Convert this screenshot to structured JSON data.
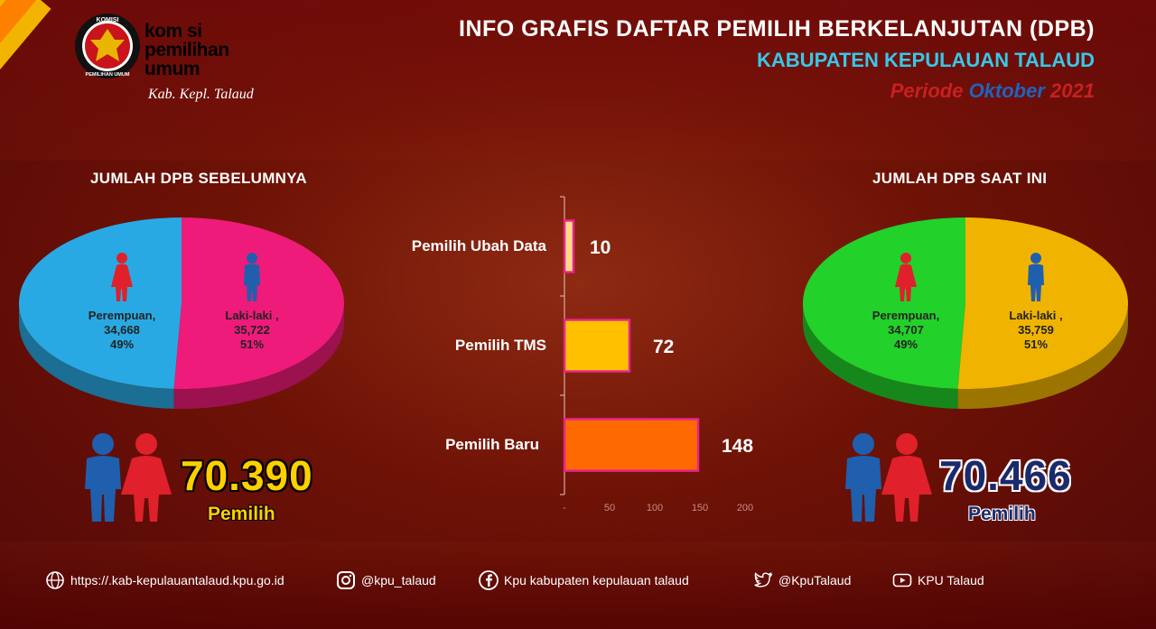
{
  "header": {
    "title": "INFO GRAFIS DAFTAR PEMILIH BERKELANJUTAN (DPB)",
    "subtitle": "KABUPATEN KEPULAUAN TALAUD",
    "periode_prefix": "Periode",
    "periode_month": "Oktober",
    "periode_year": "2021"
  },
  "logo": {
    "badge_top": "KOMISI",
    "badge_bottom": "PEMILIHAN UMUM",
    "line1": "kom si",
    "line2": "pemilihan",
    "line3": "umum",
    "subtitle": "Kab. Kepl. Talaud"
  },
  "colors": {
    "female_prev": "#29a9e3",
    "male_prev": "#ee1b7a",
    "female_curr": "#22d12a",
    "male_curr": "#f0b400",
    "female_icon": "#e0202a",
    "male_icon": "#1f5fae"
  },
  "chart_data": [
    {
      "type": "pie",
      "title": "JUMLAH DPB SEBELUMNYA",
      "slices": [
        {
          "label": "Perempuan,",
          "value_text": "34,668",
          "value": 34668,
          "percent": "49%"
        },
        {
          "label": "Laki-laki ,",
          "value_text": "35,722",
          "value": 35722,
          "percent": "51%"
        }
      ],
      "total": "70.390",
      "total_label": "Pemilih"
    },
    {
      "type": "bar",
      "orientation": "horizontal",
      "categories": [
        "Pemilih Ubah Data",
        "Pemilih TMS",
        "Pemilih Baru"
      ],
      "values": [
        10,
        72,
        148
      ],
      "value_labels": [
        "10",
        "72",
        "148"
      ],
      "bar_colors": [
        "#ffd98a",
        "#ffc000",
        "#ff6a00"
      ],
      "xlim": [
        0,
        200
      ],
      "xticks": [
        "-",
        "50",
        "100",
        "150",
        "200"
      ]
    },
    {
      "type": "pie",
      "title": "JUMLAH DPB SAAT INI",
      "slices": [
        {
          "label": "Perempuan,",
          "value_text": "34,707",
          "value": 34707,
          "percent": "49%"
        },
        {
          "label": "Laki-laki ,",
          "value_text": "35,759",
          "value": 35759,
          "percent": "51%"
        }
      ],
      "total": "70.466",
      "total_label": "Pemilih"
    }
  ],
  "footer": {
    "website": "https://.kab-kepulauantalaud.kpu.go.id",
    "instagram": "@kpu_talaud",
    "facebook": "Kpu kabupaten kepulauan talaud",
    "twitter": "@KpuTalaud",
    "youtube": "KPU Talaud"
  }
}
